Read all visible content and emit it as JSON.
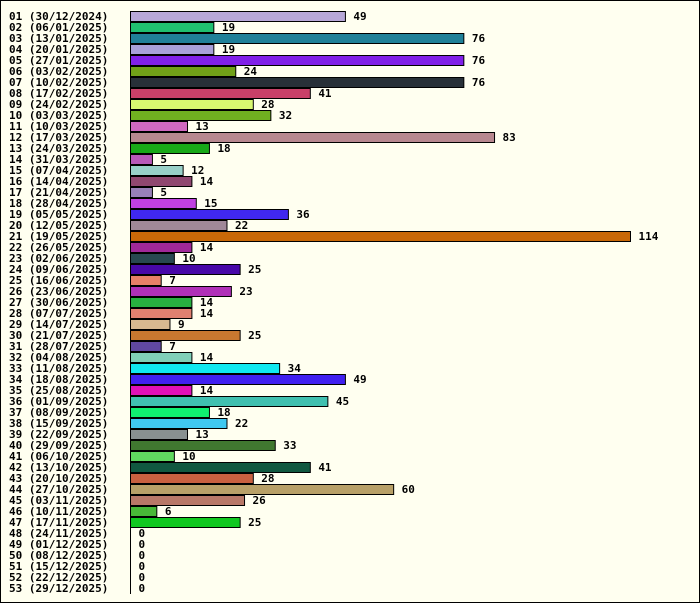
{
  "chart_data": {
    "type": "bar",
    "orientation": "horizontal",
    "grid": false,
    "legend": "none",
    "title": "",
    "xlabel": "",
    "ylabel": "",
    "xlim": [
      0,
      114
    ],
    "categories": [
      "01 (30/12/2024)",
      "02 (06/01/2025)",
      "03 (13/01/2025)",
      "04 (20/01/2025)",
      "05 (27/01/2025)",
      "06 (03/02/2025)",
      "07 (10/02/2025)",
      "08 (17/02/2025)",
      "09 (24/02/2025)",
      "10 (03/03/2025)",
      "11 (10/03/2025)",
      "12 (17/03/2025)",
      "13 (24/03/2025)",
      "14 (31/03/2025)",
      "15 (07/04/2025)",
      "16 (14/04/2025)",
      "17 (21/04/2025)",
      "18 (28/04/2025)",
      "19 (05/05/2025)",
      "20 (12/05/2025)",
      "21 (19/05/2025)",
      "22 (26/05/2025)",
      "23 (02/06/2025)",
      "24 (09/06/2025)",
      "25 (16/06/2025)",
      "26 (23/06/2025)",
      "27 (30/06/2025)",
      "28 (07/07/2025)",
      "29 (14/07/2025)",
      "30 (21/07/2025)",
      "31 (28/07/2025)",
      "32 (04/08/2025)",
      "33 (11/08/2025)",
      "34 (18/08/2025)",
      "35 (25/08/2025)",
      "36 (01/09/2025)",
      "37 (08/09/2025)",
      "38 (15/09/2025)",
      "39 (22/09/2025)",
      "40 (29/09/2025)",
      "41 (06/10/2025)",
      "42 (13/10/2025)",
      "43 (20/10/2025)",
      "44 (27/10/2025)",
      "45 (03/11/2025)",
      "46 (10/11/2025)",
      "47 (17/11/2025)",
      "48 (24/11/2025)",
      "49 (01/12/2025)",
      "50 (08/12/2025)",
      "51 (15/12/2025)",
      "52 (22/12/2025)",
      "53 (29/12/2025)"
    ],
    "values": [
      49,
      19,
      76,
      19,
      76,
      24,
      76,
      41,
      28,
      32,
      13,
      83,
      18,
      5,
      12,
      14,
      5,
      15,
      36,
      22,
      114,
      14,
      10,
      25,
      7,
      23,
      14,
      14,
      9,
      25,
      7,
      14,
      34,
      49,
      14,
      45,
      18,
      22,
      13,
      33,
      10,
      41,
      28,
      60,
      26,
      6,
      25,
      0,
      0,
      0,
      0,
      0,
      0
    ],
    "colors": [
      "#b8a8d8",
      "#20c070",
      "#208098",
      "#a8a0d8",
      "#8020e8",
      "#70a018",
      "#283038",
      "#c84068",
      "#d8f870",
      "#70b020",
      "#d068c0",
      "#b88890",
      "#18a818",
      "#b858b8",
      "#98d0c8",
      "#904870",
      "#9880b8",
      "#c040e0",
      "#4028f0",
      "#a08898",
      "#c86808",
      "#a02898",
      "#284850",
      "#4808a8",
      "#e88068",
      "#b030b8",
      "#28b040",
      "#e08070",
      "#d8b890",
      "#c87830",
      "#6048a0",
      "#80d0b8",
      "#10e8f0",
      "#4020f0",
      "#e010b8",
      "#40c0b0",
      "#10f070",
      "#40c8f0",
      "#889090",
      "#407830",
      "#60d860",
      "#105840",
      "#c86040",
      "#b8a068",
      "#b87868",
      "#48b838",
      "#10c820",
      "#ffffff",
      "#ffffff",
      "#ffffff",
      "#ffffff",
      "#ffffff",
      "#ffffff"
    ]
  }
}
